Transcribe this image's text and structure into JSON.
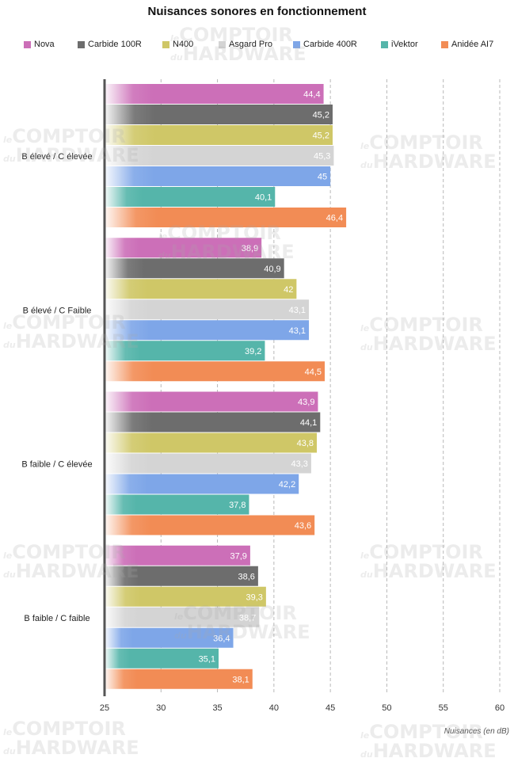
{
  "watermark": {
    "top": "COMPTOIR",
    "bottom": "HARDWARE",
    "prefix_le": "le",
    "prefix_du": "du"
  },
  "chart_data": {
    "type": "bar",
    "orientation": "horizontal",
    "title": "Nuisances sonores en fonctionnement",
    "xlabel": "Nuisances (en dB)",
    "ylabel": "",
    "xlim": [
      25,
      60
    ],
    "xticks": [
      25,
      30,
      35,
      40,
      45,
      50,
      55,
      60
    ],
    "grid": "vertical-dashed",
    "legend_position": "top",
    "categories": [
      "B élevé / C élevée",
      "B élevé / C Faible",
      "B faible / C élevée",
      "B faible / C faible"
    ],
    "series": [
      {
        "name": "Nova",
        "color": "#cc6fb8",
        "values": [
          44.4,
          38.9,
          43.9,
          37.9
        ],
        "labels": [
          "44,4",
          "38,9",
          "43,9",
          "37,9"
        ]
      },
      {
        "name": "Carbide 100R",
        "color": "#6d6d6d",
        "values": [
          45.2,
          40.9,
          44.1,
          38.6
        ],
        "labels": [
          "45,2",
          "40,9",
          "44,1",
          "38,6"
        ]
      },
      {
        "name": "N400",
        "color": "#cfc767",
        "values": [
          45.2,
          42,
          43.8,
          39.3
        ],
        "labels": [
          "45,2",
          "42",
          "43,8",
          "39,3"
        ]
      },
      {
        "name": "Asgard Pro",
        "color": "#d4d4d4",
        "values": [
          45.3,
          43.1,
          43.3,
          38.7
        ],
        "labels": [
          "45,3",
          "43,1",
          "43,3",
          "38,7"
        ]
      },
      {
        "name": "Carbide 400R",
        "color": "#7ea6e8",
        "values": [
          45,
          43.1,
          42.2,
          36.4
        ],
        "labels": [
          "45",
          "43,1",
          "42,2",
          "36,4"
        ]
      },
      {
        "name": "iVektor",
        "color": "#55b5aa",
        "values": [
          40.1,
          39.2,
          37.8,
          35.1
        ],
        "labels": [
          "40,1",
          "39,2",
          "37,8",
          "35,1"
        ]
      },
      {
        "name": "Anidée AI7",
        "color": "#f28c55",
        "values": [
          46.4,
          44.5,
          43.6,
          38.1
        ],
        "labels": [
          "46,4",
          "44,5",
          "43,6",
          "38,1"
        ]
      }
    ]
  }
}
